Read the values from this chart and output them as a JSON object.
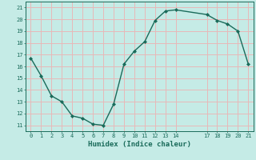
{
  "x": [
    0,
    1,
    2,
    3,
    4,
    5,
    6,
    7,
    8,
    9,
    10,
    11,
    12,
    13,
    14,
    17,
    18,
    19,
    20,
    21
  ],
  "y": [
    16.7,
    15.2,
    13.5,
    13.0,
    11.8,
    11.6,
    11.1,
    11.0,
    12.8,
    16.2,
    17.3,
    18.1,
    19.9,
    20.7,
    20.8,
    20.4,
    19.9,
    19.6,
    19.0,
    16.2
  ],
  "bg_color": "#c5ebe6",
  "grid_color": "#e8b8b8",
  "line_color": "#1a6b5a",
  "marker_color": "#1a6b5a",
  "tick_label_color": "#1a6b5a",
  "xlabel": "Humidex (Indice chaleur)",
  "xlabel_color": "#1a6b5a",
  "xticks": [
    0,
    1,
    2,
    3,
    4,
    5,
    6,
    7,
    8,
    9,
    10,
    11,
    12,
    13,
    14,
    17,
    18,
    19,
    20,
    21
  ],
  "yticks": [
    11,
    12,
    13,
    14,
    15,
    16,
    17,
    18,
    19,
    20,
    21
  ],
  "ylim": [
    10.5,
    21.5
  ],
  "xlim": [
    -0.5,
    21.5
  ]
}
